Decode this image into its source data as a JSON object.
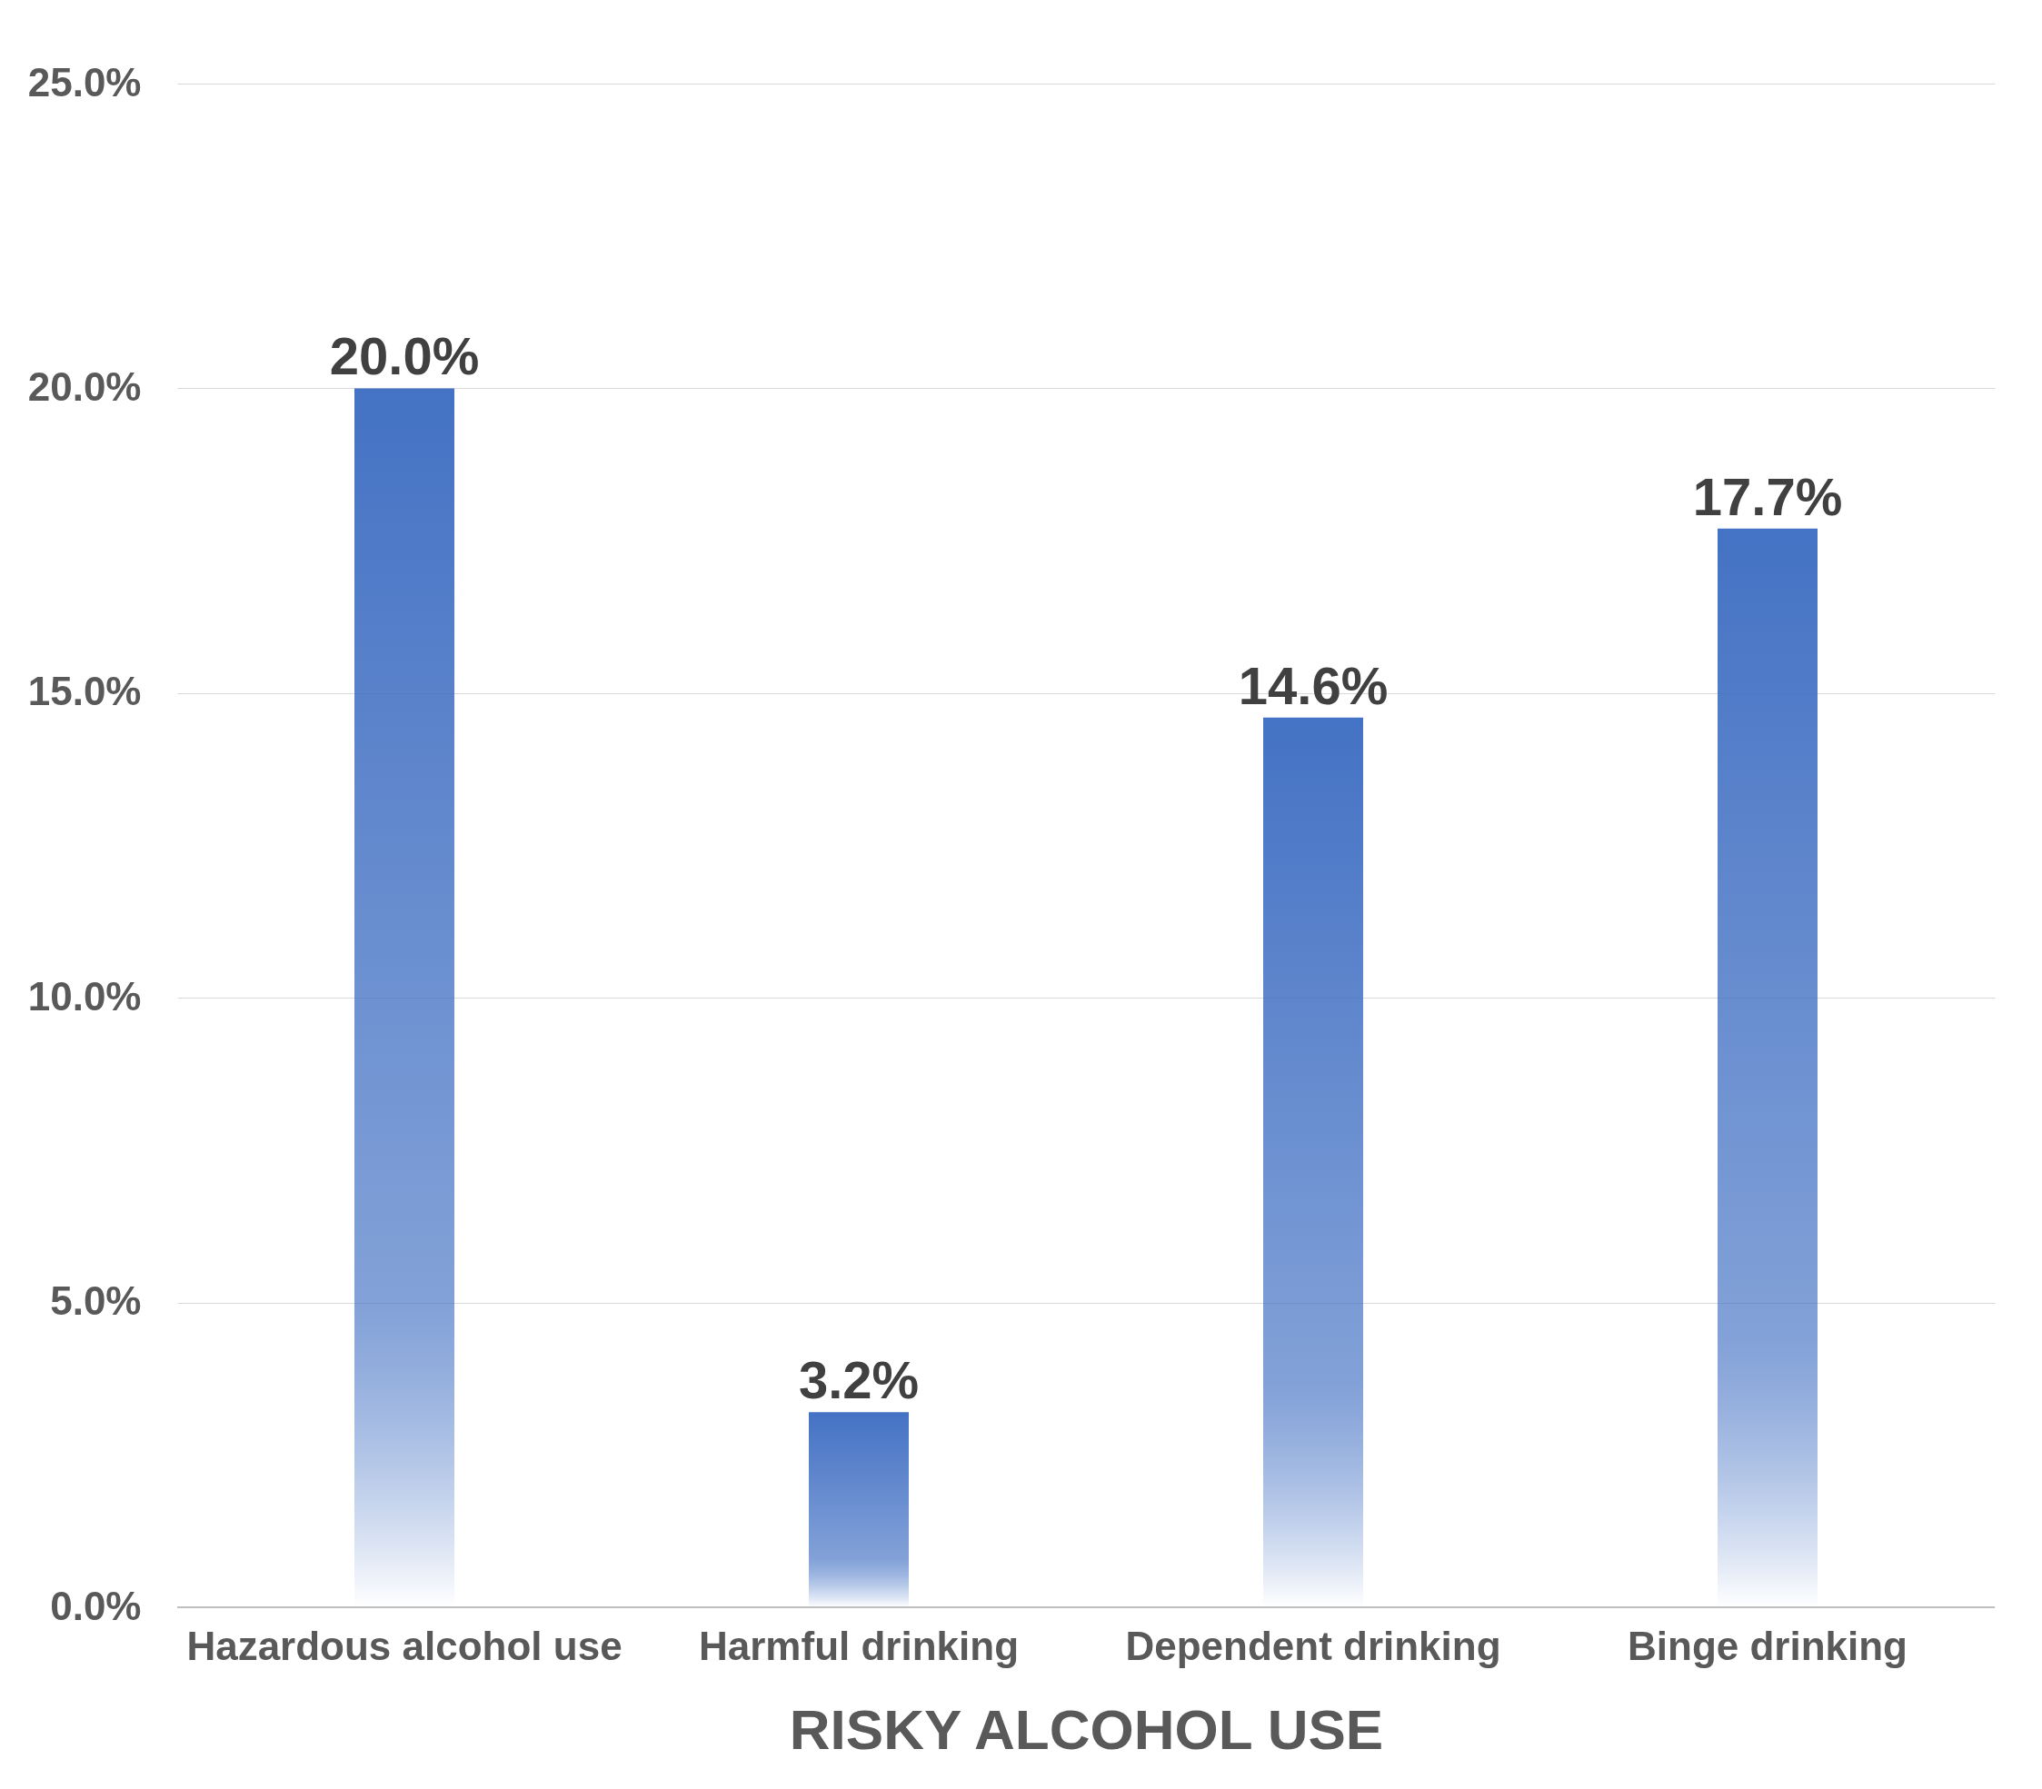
{
  "chart_data": {
    "type": "bar",
    "xlabel": "RISKY ALCOHOL USE",
    "categories": [
      "Hazardous alcohol use",
      "Harmful drinking",
      "Dependent drinking",
      "Binge drinking"
    ],
    "values": [
      20.0,
      3.2,
      14.6,
      17.7
    ],
    "value_labels": [
      "20.0%",
      "3.2%",
      "14.6%",
      "17.7%"
    ],
    "color": "#4472c4",
    "ylim": [
      0,
      25
    ],
    "yticks": [
      {
        "value": 0,
        "label": "0.0%"
      },
      {
        "value": 5,
        "label": "5.0%"
      },
      {
        "value": 10,
        "label": "10.0%"
      },
      {
        "value": 15,
        "label": "15.0%"
      },
      {
        "value": 20,
        "label": "20.0%"
      },
      {
        "value": 25,
        "label": "25.0%"
      }
    ],
    "grid": "y"
  }
}
